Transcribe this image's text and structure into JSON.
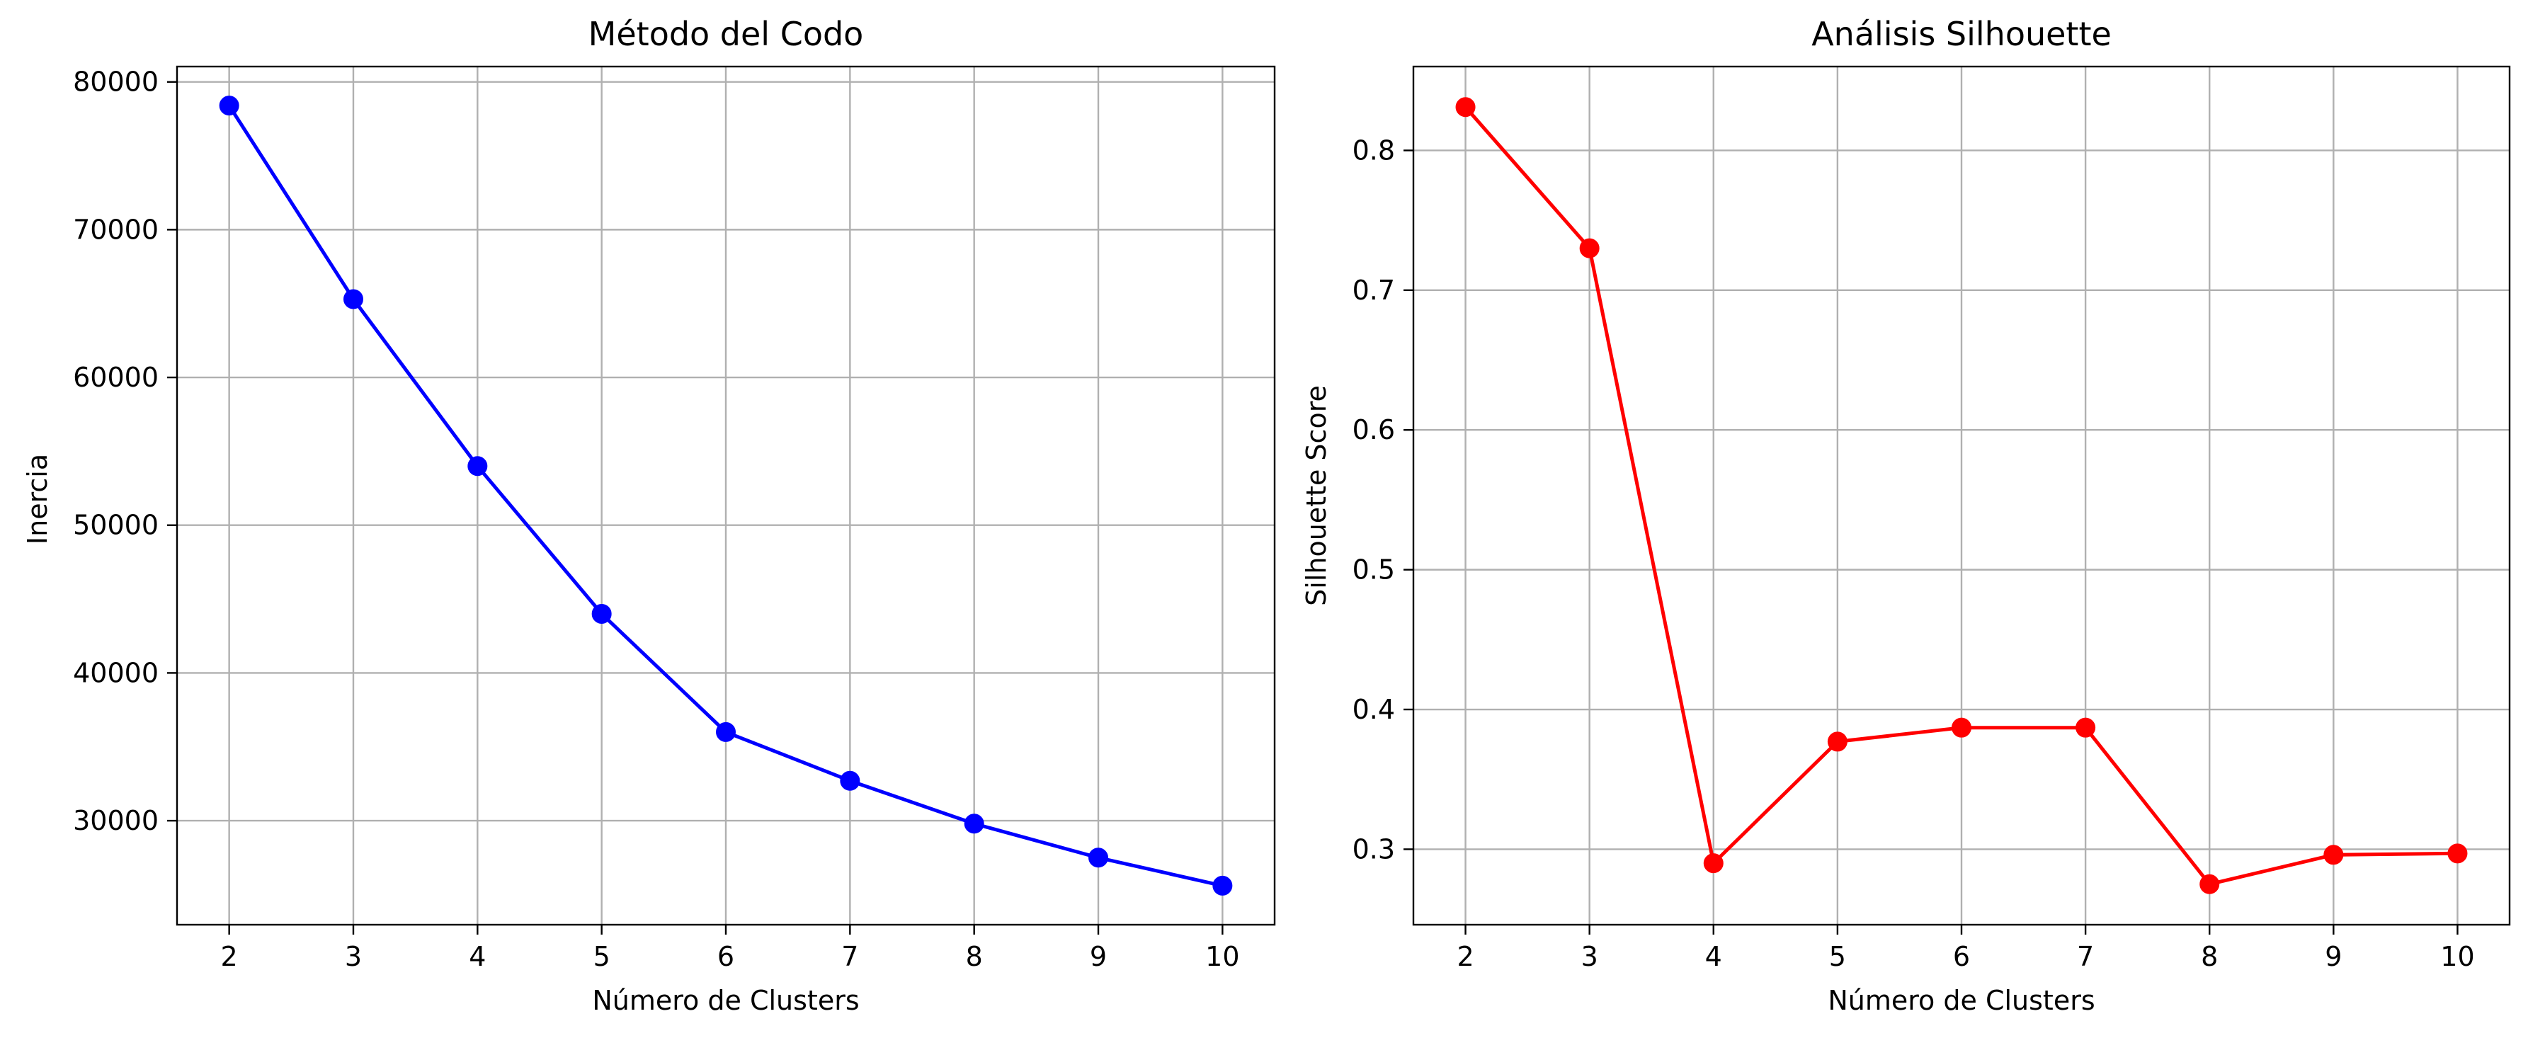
{
  "chart_data": [
    {
      "type": "line",
      "title": "Método del Codo",
      "xlabel": "Número de Clusters",
      "ylabel": "Inercia",
      "x": [
        2,
        3,
        4,
        5,
        6,
        7,
        8,
        9,
        10
      ],
      "series": [
        {
          "values": [
            78400,
            65300,
            54000,
            44000,
            36000,
            32700,
            29800,
            27500,
            25600
          ],
          "color": "#0000ff",
          "marker": "circle"
        }
      ],
      "xticks": [
        "2",
        "3",
        "4",
        "5",
        "6",
        "7",
        "8",
        "9",
        "10"
      ],
      "yticks": [
        30000,
        40000,
        50000,
        60000,
        70000,
        80000
      ],
      "ytick_labels": [
        "30000",
        "40000",
        "50000",
        "60000",
        "70000",
        "80000"
      ],
      "xlim": [
        1.58,
        10.42
      ],
      "ylim": [
        22960,
        81040
      ],
      "grid": true
    },
    {
      "type": "line",
      "title": "Análisis Silhouette",
      "xlabel": "Número de Clusters",
      "ylabel": "Silhouette Score",
      "x": [
        2,
        3,
        4,
        5,
        6,
        7,
        8,
        9,
        10
      ],
      "series": [
        {
          "values": [
            0.831,
            0.73,
            0.29,
            0.377,
            0.387,
            0.387,
            0.275,
            0.296,
            0.297
          ],
          "color": "#ff0000",
          "marker": "circle"
        }
      ],
      "xticks": [
        "2",
        "3",
        "4",
        "5",
        "6",
        "7",
        "8",
        "9",
        "10"
      ],
      "yticks": [
        0.3,
        0.4,
        0.5,
        0.6,
        0.7,
        0.8
      ],
      "ytick_labels": [
        "0.3",
        "0.4",
        "0.5",
        "0.6",
        "0.7",
        "0.8"
      ],
      "xlim": [
        1.58,
        10.42
      ],
      "ylim": [
        0.246,
        0.86
      ],
      "grid": true
    }
  ]
}
